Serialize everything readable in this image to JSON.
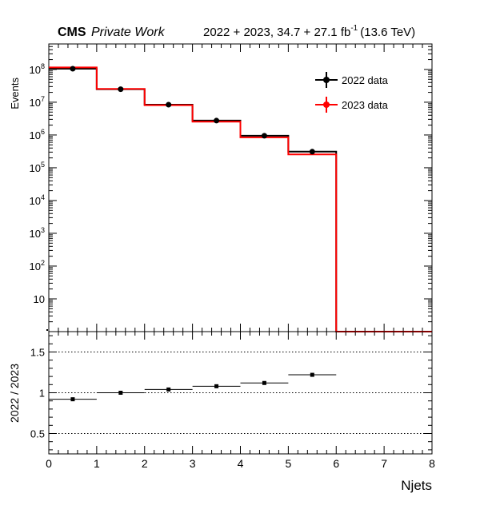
{
  "header": {
    "experiment": "CMS",
    "status": "Private Work",
    "lumi_prefix": "2022 + 2023, 34.7 + 27.1 fb",
    "lumi_exp": "-1",
    "lumi_suffix": "(13.6 TeV)"
  },
  "chart_data": [
    {
      "type": "line",
      "ylabel": "Events",
      "yscale": "log",
      "ylim": [
        1,
        600000000
      ],
      "ytick_labels": [
        {
          "base": "",
          "exp": "",
          "text": "10"
        },
        {
          "base": "10",
          "exp": "2"
        },
        {
          "base": "10",
          "exp": "3"
        },
        {
          "base": "10",
          "exp": "4"
        },
        {
          "base": "10",
          "exp": "5"
        },
        {
          "base": "10",
          "exp": "6"
        },
        {
          "base": "10",
          "exp": "7"
        },
        {
          "base": "10",
          "exp": "8"
        }
      ],
      "x_edges": [
        0,
        1,
        2,
        3,
        4,
        5,
        6,
        7,
        8
      ],
      "series": [
        {
          "name": "2022 data",
          "color": "#000000",
          "values": [
            105000000,
            25000000,
            8400000,
            2750000,
            950000,
            310000,
            0,
            0
          ],
          "markers": true
        },
        {
          "name": "2023 data",
          "color": "#ff0000",
          "values": [
            115000000,
            25500000,
            8100000,
            2550000,
            850000,
            255000,
            0,
            0
          ],
          "markers": false
        }
      ],
      "legend_position": "top-right"
    },
    {
      "type": "scatter",
      "ylabel": "2022 / 2023",
      "xlabel": "Njets",
      "ylim": [
        0.25,
        1.75
      ],
      "xlim": [
        0,
        8
      ],
      "yticks": [
        0.5,
        1,
        1.5
      ],
      "ytick_labels": [
        "0.5",
        "1",
        "1.5"
      ],
      "xticks": [
        0,
        1,
        2,
        3,
        4,
        5,
        6,
        7,
        8
      ],
      "xtick_labels": [
        "0",
        "1",
        "2",
        "3",
        "4",
        "5",
        "6",
        "7",
        "8"
      ],
      "grid_lines": [
        0.5,
        1,
        1.5
      ],
      "points": [
        {
          "x": 0.5,
          "y": 0.92
        },
        {
          "x": 1.5,
          "y": 1.0
        },
        {
          "x": 2.5,
          "y": 1.04
        },
        {
          "x": 3.5,
          "y": 1.08
        },
        {
          "x": 4.5,
          "y": 1.12
        },
        {
          "x": 5.5,
          "y": 1.22
        }
      ]
    }
  ]
}
